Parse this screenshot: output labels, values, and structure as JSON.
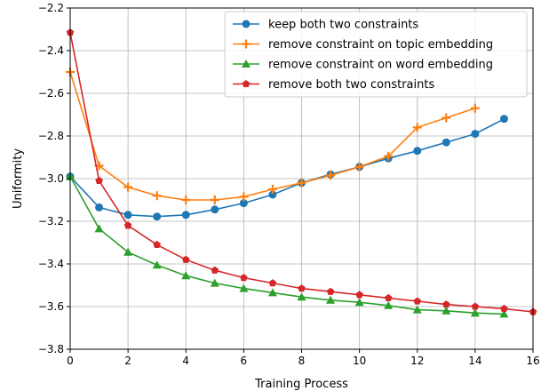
{
  "chart_data": {
    "type": "line",
    "title": "",
    "xlabel": "Training Process",
    "ylabel": "Uniformity",
    "xlim": [
      0,
      16
    ],
    "ylim": [
      -3.8,
      -2.2
    ],
    "xticks": [
      0,
      2,
      4,
      6,
      8,
      10,
      12,
      14,
      16
    ],
    "xtick_labels": [
      "0",
      "2",
      "4",
      "6",
      "8",
      "10",
      "12",
      "14",
      "16"
    ],
    "yticks": [
      -3.8,
      -3.6,
      -3.4,
      -3.2,
      -3.0,
      -2.8,
      -2.6,
      -2.4,
      -2.2
    ],
    "ytick_labels": [
      "−3.8",
      "−3.6",
      "−3.4",
      "−3.2",
      "−3.0",
      "−2.8",
      "−2.6",
      "−2.4",
      "−2.2"
    ],
    "grid": true,
    "legend_position": "top-right",
    "series": [
      {
        "name": "keep both two constraints",
        "color": "#1f77b4",
        "marker": "circle",
        "x": [
          0,
          1,
          2,
          3,
          4,
          5,
          6,
          7,
          8,
          9,
          10,
          11,
          12,
          13,
          14,
          15
        ],
        "values": [
          -2.99,
          -3.135,
          -3.17,
          -3.178,
          -3.17,
          -3.145,
          -3.115,
          -3.075,
          -3.02,
          -2.98,
          -2.945,
          -2.905,
          -2.87,
          -2.83,
          -2.79,
          -2.72
        ]
      },
      {
        "name": "remove constraint on topic embedding",
        "color": "#ff7f0e",
        "marker": "plus",
        "x": [
          0,
          1,
          2,
          3,
          4,
          5,
          6,
          7,
          8,
          9,
          10,
          11,
          12,
          13,
          14
        ],
        "values": [
          -2.5,
          -2.94,
          -3.04,
          -3.08,
          -3.1,
          -3.1,
          -3.085,
          -3.05,
          -3.02,
          -2.985,
          -2.945,
          -2.895,
          -2.76,
          -2.715,
          -2.67
        ]
      },
      {
        "name": "remove constraint on word embedding",
        "color": "#2ca02c",
        "marker": "triangle",
        "x": [
          0,
          1,
          2,
          3,
          4,
          5,
          6,
          7,
          8,
          9,
          10,
          11,
          12,
          13,
          14,
          15
        ],
        "values": [
          -2.99,
          -3.235,
          -3.345,
          -3.405,
          -3.455,
          -3.49,
          -3.515,
          -3.535,
          -3.555,
          -3.57,
          -3.58,
          -3.595,
          -3.615,
          -3.62,
          -3.63,
          -3.635
        ]
      },
      {
        "name": "remove both two constraints",
        "color": "#d62728",
        "marker": "pentagon",
        "x": [
          0,
          1,
          2,
          3,
          4,
          5,
          6,
          7,
          8,
          9,
          10,
          11,
          12,
          13,
          14,
          15,
          16
        ],
        "values": [
          -2.315,
          -3.01,
          -3.22,
          -3.31,
          -3.38,
          -3.43,
          -3.465,
          -3.49,
          -3.515,
          -3.53,
          -3.545,
          -3.56,
          -3.575,
          -3.59,
          -3.6,
          -3.61,
          -3.625
        ]
      }
    ]
  }
}
